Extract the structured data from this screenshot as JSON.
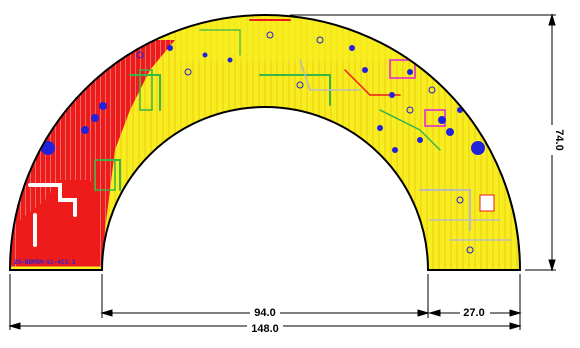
{
  "drawing": {
    "board_label": "ZO-BDM5M-51-4C3.3",
    "dimensions": {
      "inner_width": "94.0",
      "rim_width": "27.0",
      "overall_width": "148.0",
      "height": "74.0"
    }
  },
  "colors": {
    "copper_red": "#ee1b1b",
    "copper_yellow": "#f7ee1f",
    "via_blue": "#2222dd",
    "silk_magenta": "#e020e0",
    "trace_green": "#39b54a",
    "outline": "#000000"
  }
}
